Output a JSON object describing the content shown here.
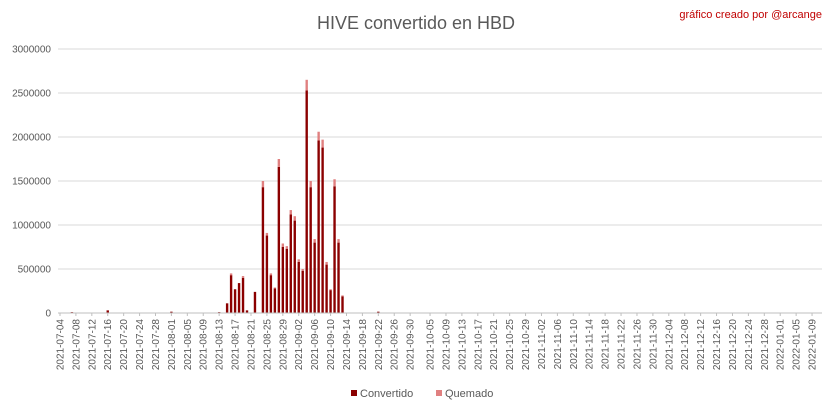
{
  "chart_data": {
    "type": "bar",
    "stacked": true,
    "title": "HIVE convertido en HBD",
    "credit": "gráfico creado por @arcange",
    "xlabel": "",
    "ylabel": "",
    "ylim": [
      0,
      3000000
    ],
    "yticks": [
      "0",
      "500000",
      "1000000",
      "1500000",
      "2000000",
      "2500000",
      "3000000"
    ],
    "xticks": [
      "2021-07-04",
      "2021-07-08",
      "2021-07-12",
      "2021-07-16",
      "2021-07-20",
      "2021-07-24",
      "2021-07-28",
      "2021-08-01",
      "2021-08-05",
      "2021-08-09",
      "2021-08-13",
      "2021-08-17",
      "2021-08-21",
      "2021-08-25",
      "2021-08-29",
      "2021-09-02",
      "2021-09-06",
      "2021-09-10",
      "2021-09-14",
      "2021-09-18",
      "2021-09-22",
      "2021-09-26",
      "2021-09-30",
      "2021-10-05",
      "2021-10-09",
      "2021-10-13",
      "2021-10-17",
      "2021-10-21",
      "2021-10-25",
      "2021-10-29",
      "2021-11-02",
      "2021-11-06",
      "2021-11-10",
      "2021-11-14",
      "2021-11-18",
      "2021-11-22",
      "2021-11-26",
      "2021-11-30",
      "2021-12-04",
      "2021-12-08",
      "2021-12-12",
      "2021-12-16",
      "2021-12-20",
      "2021-12-24",
      "2021-12-28",
      "2022-01-01",
      "2022-01-05",
      "2022-01-09"
    ],
    "grid": true,
    "legend": "bottom",
    "colors": {
      "Convertido": "#8b0000",
      "Quemado": "#e08080"
    },
    "bars": [
      {
        "x": "2021-07-07",
        "Convertido": 10000,
        "Quemado": 0
      },
      {
        "x": "2021-07-16",
        "Convertido": 30000,
        "Quemado": 0
      },
      {
        "x": "2021-08-01",
        "Convertido": 15000,
        "Quemado": 0
      },
      {
        "x": "2021-08-13",
        "Convertido": 10000,
        "Quemado": 0
      },
      {
        "x": "2021-08-15",
        "Convertido": 110000,
        "Quemado": 0
      },
      {
        "x": "2021-08-16",
        "Convertido": 430000,
        "Quemado": 20000
      },
      {
        "x": "2021-08-17",
        "Convertido": 270000,
        "Quemado": 0
      },
      {
        "x": "2021-08-18",
        "Convertido": 340000,
        "Quemado": 0
      },
      {
        "x": "2021-08-19",
        "Convertido": 400000,
        "Quemado": 20000
      },
      {
        "x": "2021-08-20",
        "Convertido": 30000,
        "Quemado": 0
      },
      {
        "x": "2021-08-22",
        "Convertido": 240000,
        "Quemado": 0
      },
      {
        "x": "2021-08-24",
        "Convertido": 1430000,
        "Quemado": 70000
      },
      {
        "x": "2021-08-25",
        "Convertido": 880000,
        "Quemado": 30000
      },
      {
        "x": "2021-08-26",
        "Convertido": 430000,
        "Quemado": 20000
      },
      {
        "x": "2021-08-27",
        "Convertido": 280000,
        "Quemado": 10000
      },
      {
        "x": "2021-08-28",
        "Convertido": 1660000,
        "Quemado": 90000
      },
      {
        "x": "2021-08-29",
        "Convertido": 750000,
        "Quemado": 40000
      },
      {
        "x": "2021-08-30",
        "Convertido": 730000,
        "Quemado": 30000
      },
      {
        "x": "2021-08-31",
        "Convertido": 1120000,
        "Quemado": 50000
      },
      {
        "x": "2021-09-01",
        "Convertido": 1050000,
        "Quemado": 50000
      },
      {
        "x": "2021-09-02",
        "Convertido": 580000,
        "Quemado": 30000
      },
      {
        "x": "2021-09-03",
        "Convertido": 480000,
        "Quemado": 20000
      },
      {
        "x": "2021-09-04",
        "Convertido": 2530000,
        "Quemado": 120000
      },
      {
        "x": "2021-09-05",
        "Convertido": 1430000,
        "Quemado": 70000
      },
      {
        "x": "2021-09-06",
        "Convertido": 800000,
        "Quemado": 40000
      },
      {
        "x": "2021-09-07",
        "Convertido": 1960000,
        "Quemado": 100000
      },
      {
        "x": "2021-09-08",
        "Convertido": 1880000,
        "Quemado": 90000
      },
      {
        "x": "2021-09-09",
        "Convertido": 550000,
        "Quemado": 30000
      },
      {
        "x": "2021-09-10",
        "Convertido": 260000,
        "Quemado": 10000
      },
      {
        "x": "2021-09-11",
        "Convertido": 1440000,
        "Quemado": 80000
      },
      {
        "x": "2021-09-12",
        "Convertido": 800000,
        "Quemado": 40000
      },
      {
        "x": "2021-09-13",
        "Convertido": 190000,
        "Quemado": 10000
      },
      {
        "x": "2021-09-22",
        "Convertido": 15000,
        "Quemado": 0
      }
    ]
  },
  "legend_items": [
    {
      "label": "Convertido",
      "color": "#8b0000"
    },
    {
      "label": "Quemado",
      "color": "#e08080"
    }
  ]
}
